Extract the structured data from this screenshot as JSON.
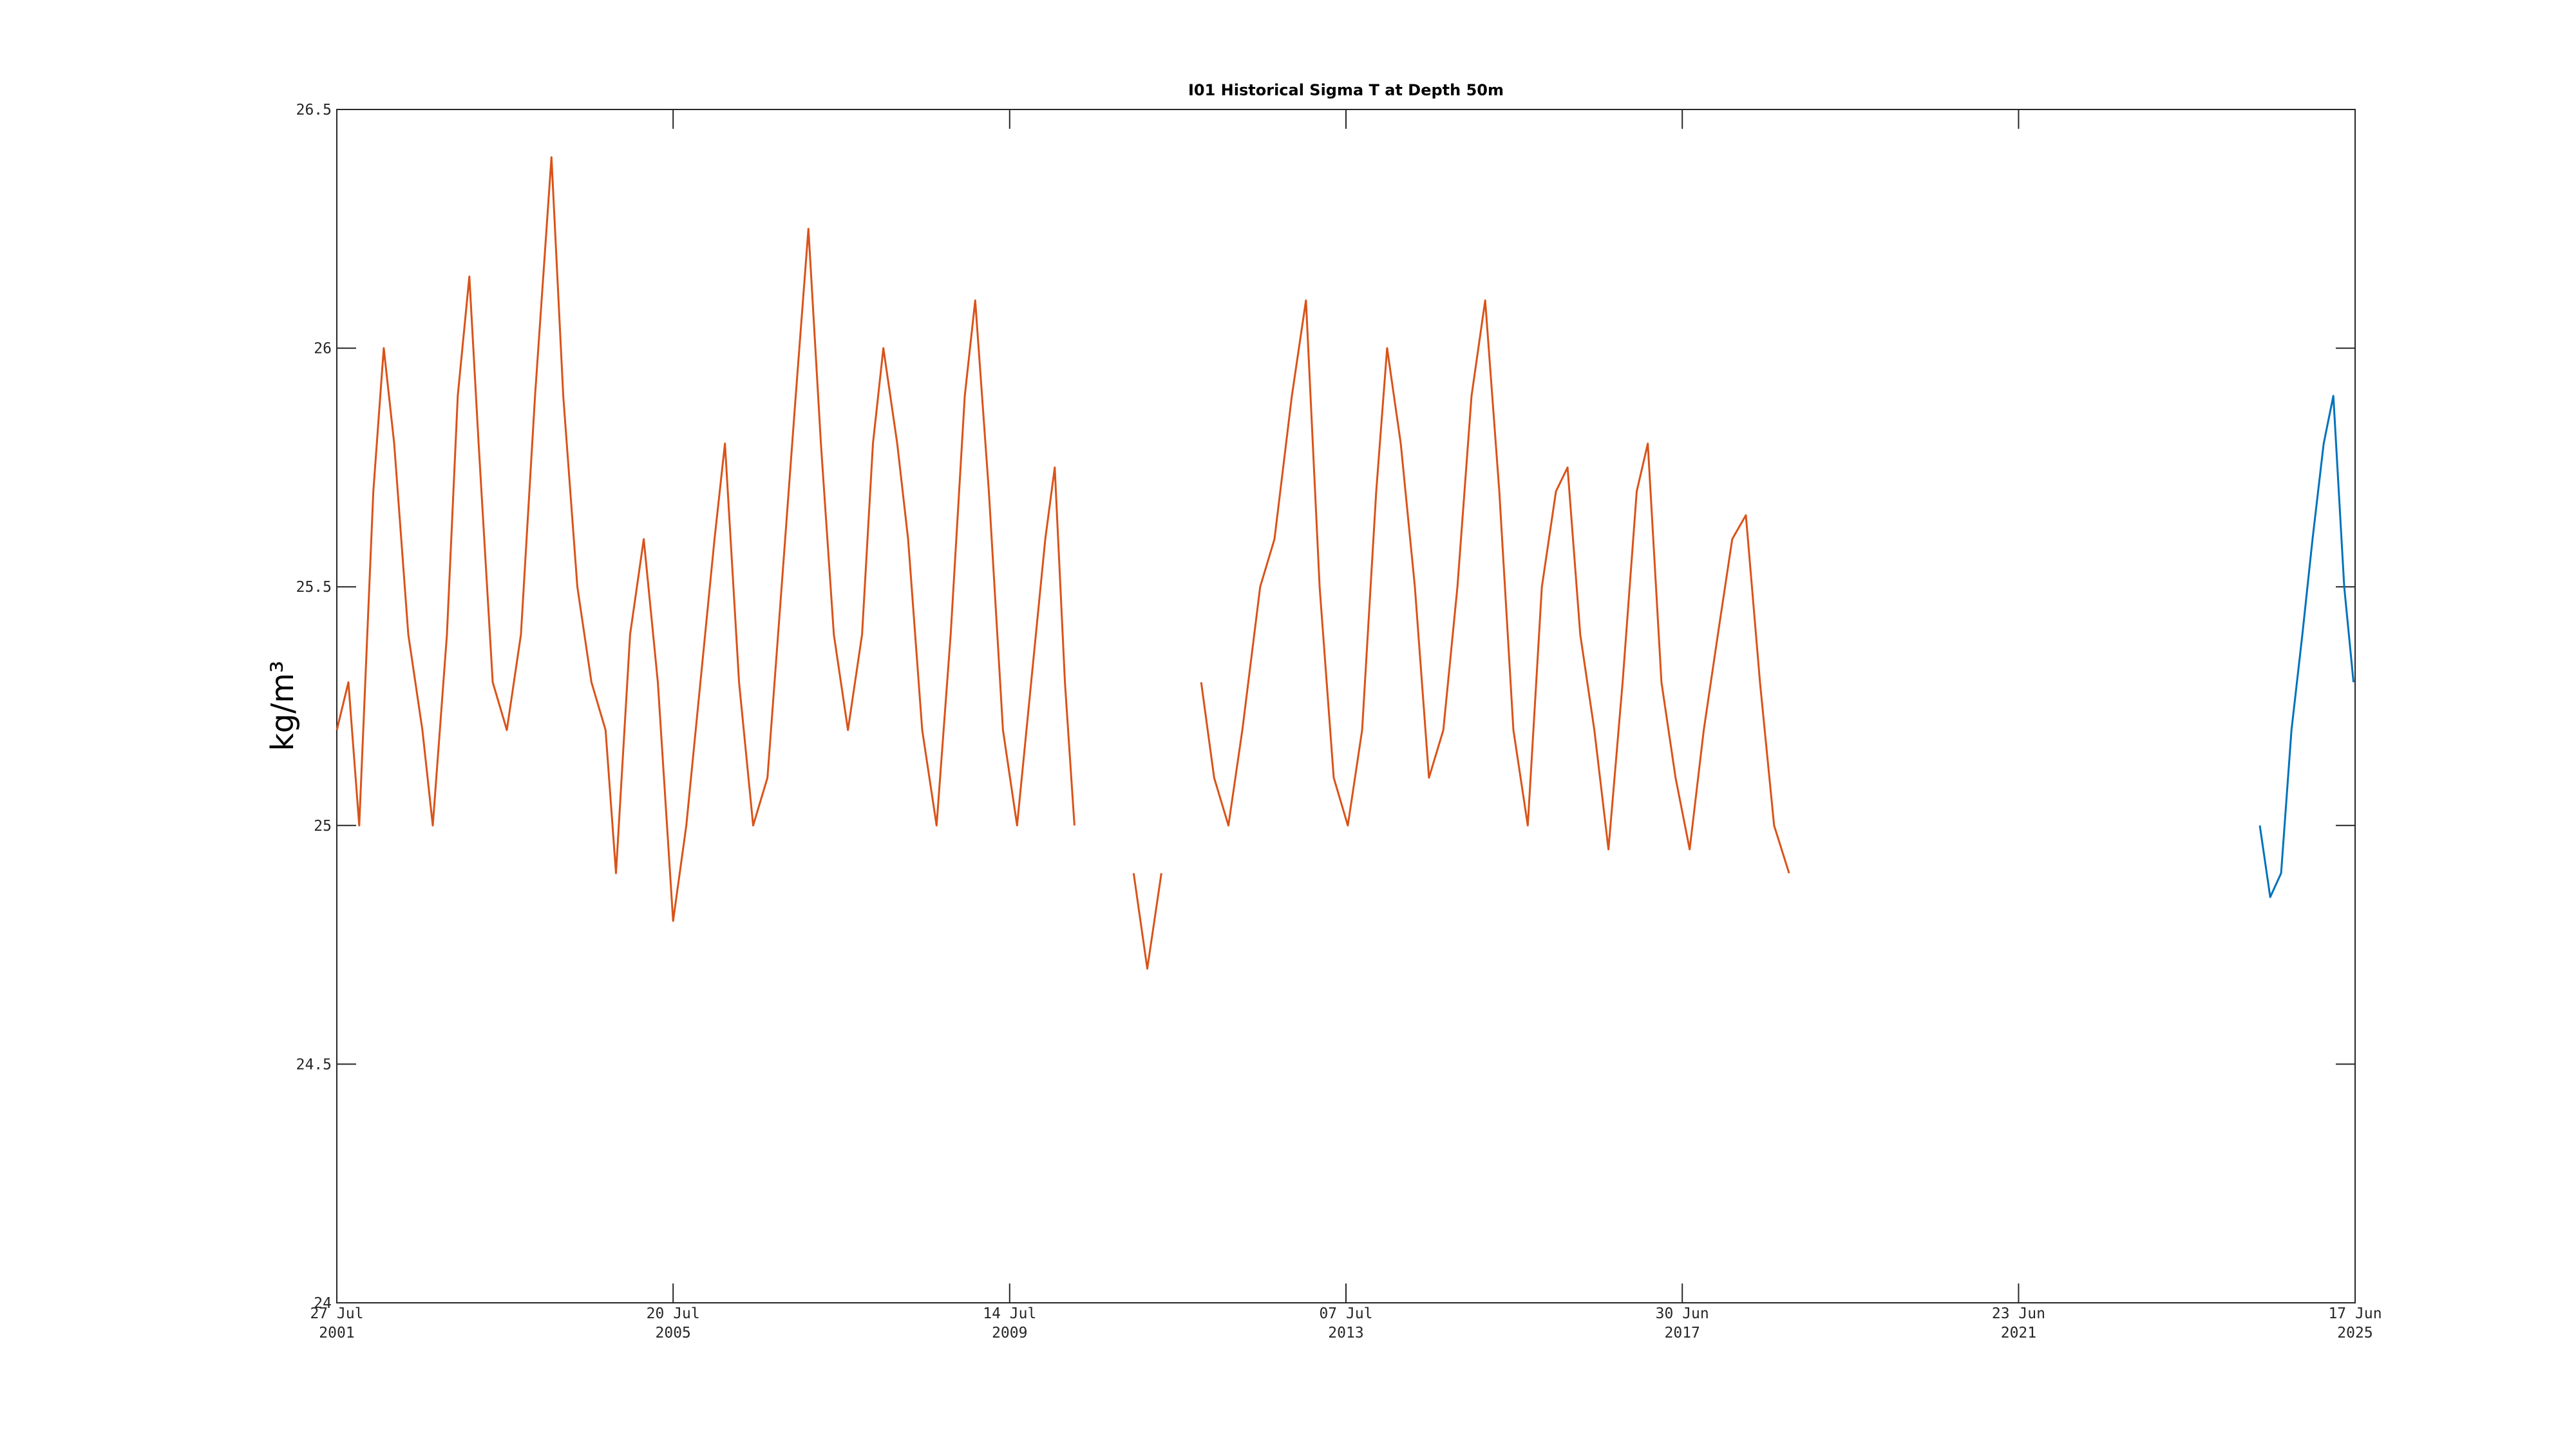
{
  "chart_data": {
    "type": "line",
    "title": "I01 Historical Sigma T at Depth 50m",
    "ylabel": "kg/m³",
    "xlim": [
      "2001-07-27",
      "2025-06-17"
    ],
    "xticks": [
      {
        "value": "2001-07-27",
        "label": [
          "27 Jul",
          "2001"
        ]
      },
      {
        "value": "2005-07-20",
        "label": [
          "20 Jul",
          "2005"
        ]
      },
      {
        "value": "2009-07-14",
        "label": [
          "14 Jul",
          "2009"
        ]
      },
      {
        "value": "2013-07-07",
        "label": [
          "07 Jul",
          "2013"
        ]
      },
      {
        "value": "2017-06-30",
        "label": [
          "30 Jun",
          "2017"
        ]
      },
      {
        "value": "2021-06-23",
        "label": [
          "23 Jun",
          "2021"
        ]
      },
      {
        "value": "2025-06-17",
        "label": [
          "17 Jun",
          "2025"
        ]
      }
    ],
    "ylim": [
      24,
      26.5
    ],
    "yticks": [
      24,
      24.5,
      25,
      25.5,
      26,
      26.5
    ],
    "grid": false,
    "series": [
      {
        "color": "#D95319",
        "x": [
          "2001-07-27",
          "2001-09-15",
          "2001-11-01",
          "2002-01-01",
          "2002-02-15",
          "2002-04-01",
          "2002-06-01",
          "2002-08-01",
          "2002-09-15",
          "2002-11-15",
          "2003-01-01",
          "2003-02-20",
          "2003-04-01",
          "2003-06-01",
          "2003-08-01",
          "2003-10-01",
          "2003-12-01",
          "2004-02-10",
          "2004-04-01",
          "2004-06-01",
          "2004-08-01",
          "2004-10-01",
          "2004-11-15",
          "2005-01-15",
          "2005-03-15",
          "2005-05-15",
          "2005-07-20",
          "2005-09-15",
          "2005-11-15",
          "2006-01-15",
          "2006-03-01",
          "2006-05-01",
          "2006-07-01",
          "2006-09-01",
          "2006-11-01",
          "2007-01-01",
          "2007-02-25",
          "2007-04-20",
          "2007-06-15",
          "2007-08-15",
          "2007-10-15",
          "2007-12-01",
          "2008-01-15",
          "2008-03-15",
          "2008-05-01",
          "2008-07-01",
          "2008-09-01",
          "2008-11-01",
          "2009-01-01",
          "2009-02-15",
          "2009-04-15",
          "2009-06-15",
          "2009-08-15",
          "2009-10-15",
          "2009-12-15",
          "2010-01-25",
          "2010-03-10",
          "2010-04-20",
          "2010-08-01",
          "2011-01-01",
          "2011-03-01",
          "2011-05-01",
          "2011-07-01",
          "2011-10-20",
          "2011-12-15",
          "2012-02-15",
          "2012-04-15",
          "2012-07-01",
          "2012-09-01",
          "2012-11-15",
          "2013-01-15",
          "2013-03-15",
          "2013-05-15",
          "2013-07-15",
          "2013-09-15",
          "2013-11-15",
          "2014-01-01",
          "2014-03-01",
          "2014-05-01",
          "2014-07-01",
          "2014-09-01",
          "2014-11-01",
          "2015-01-01",
          "2015-03-01",
          "2015-05-01",
          "2015-07-01",
          "2015-09-01",
          "2015-11-01",
          "2016-01-01",
          "2016-02-20",
          "2016-04-15",
          "2016-06-15",
          "2016-08-15",
          "2016-10-15",
          "2016-12-15",
          "2017-02-01",
          "2017-04-01",
          "2017-06-01",
          "2017-08-01",
          "2017-10-01",
          "2017-12-01",
          "2018-02-01",
          "2018-04-01",
          "2018-06-01",
          "2018-08-01",
          "2018-10-05"
        ],
        "values": [
          25.2,
          25.3,
          25.0,
          25.7,
          26.0,
          25.8,
          25.4,
          25.2,
          25.0,
          25.4,
          25.9,
          26.15,
          25.8,
          25.3,
          25.2,
          25.4,
          25.9,
          26.4,
          25.9,
          25.5,
          25.3,
          25.2,
          24.9,
          25.4,
          25.6,
          25.3,
          24.8,
          25.0,
          25.3,
          25.6,
          25.8,
          25.3,
          25.0,
          25.1,
          25.5,
          25.9,
          26.25,
          25.8,
          25.4,
          25.2,
          25.4,
          25.8,
          26.0,
          25.8,
          25.6,
          25.2,
          25.0,
          25.4,
          25.9,
          26.1,
          25.7,
          25.2,
          25.0,
          25.3,
          25.6,
          25.75,
          25.3,
          25.0,
          null,
          24.9,
          24.7,
          24.9,
          null,
          25.3,
          25.1,
          25.0,
          25.2,
          25.5,
          25.6,
          25.9,
          26.1,
          25.5,
          25.1,
          25.0,
          25.2,
          25.7,
          26.0,
          25.8,
          25.5,
          25.1,
          25.2,
          25.5,
          25.9,
          26.1,
          25.7,
          25.2,
          25.0,
          25.5,
          25.7,
          25.75,
          25.4,
          25.2,
          24.95,
          25.3,
          25.7,
          25.8,
          25.3,
          25.1,
          24.95,
          25.2,
          25.4,
          25.6,
          25.65,
          25.3,
          25.0,
          24.9
        ]
      },
      {
        "color": "#0072BD",
        "x": [
          "2024-05-01",
          "2024-06-15",
          "2024-08-01",
          "2024-09-15",
          "2024-11-01",
          "2024-12-15",
          "2025-02-01",
          "2025-03-15",
          "2025-05-01",
          "2025-06-10"
        ],
        "values": [
          25.0,
          24.85,
          24.9,
          25.2,
          25.4,
          25.6,
          25.8,
          25.9,
          25.5,
          25.3
        ]
      }
    ]
  }
}
